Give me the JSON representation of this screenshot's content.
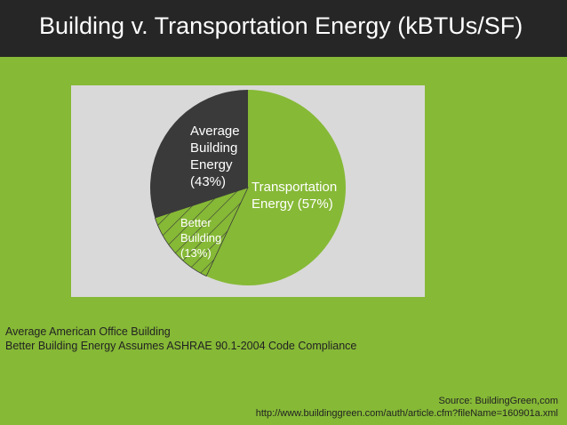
{
  "title": "Building v. Transportation Energy (kBTUs/SF)",
  "colors": {
    "background": "#86b936",
    "title_bar": "#262626",
    "panel": "#d9d9d9",
    "transportation": "#86b936",
    "building": "#3a3a3a"
  },
  "chart_data": {
    "type": "pie",
    "title": "",
    "legend": "none",
    "slices": [
      {
        "label_lines": [
          "Transportation",
          "Energy (57%)"
        ],
        "value": 57,
        "color": "#86b936",
        "label_color": "#ffffff"
      },
      {
        "label_lines": [
          "Average",
          "Building",
          "Energy",
          "(43%)"
        ],
        "value": 43,
        "color": "#3a3a3a",
        "label_color": "#ffffff",
        "sub_slice": {
          "label_lines": [
            "Better",
            "Building",
            "(13%)"
          ],
          "value": 13,
          "fill": "hatched"
        }
      }
    ]
  },
  "notes": [
    "Average American Office Building",
    "Better Building Energy Assumes ASHRAE 90.1-2004 Code Compliance"
  ],
  "source": {
    "line1": "Source: BuildingGreen,com",
    "line2": "http://www.buildinggreen.com/auth/article.cfm?fileName=160901a.xml"
  }
}
